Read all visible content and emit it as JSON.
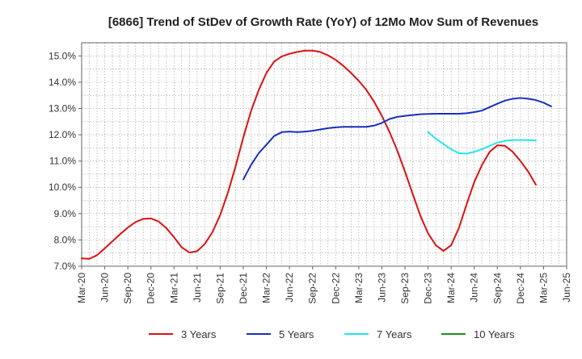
{
  "chart_data": {
    "type": "line",
    "title": "[6866]  Trend of StDev of Growth Rate (YoY) of 12Mo Mov Sum of Revenues",
    "xlabel": "",
    "ylabel": "",
    "ylim": [
      7.0,
      15.5
    ],
    "y_ticks": [
      "7.0%",
      "8.0%",
      "9.0%",
      "10.0%",
      "11.0%",
      "12.0%",
      "13.0%",
      "14.0%",
      "15.0%"
    ],
    "y_tick_values": [
      7,
      8,
      9,
      10,
      11,
      12,
      13,
      14,
      15
    ],
    "x_ticks": [
      "Mar-20",
      "Jun-20",
      "Sep-20",
      "Dec-20",
      "Mar-21",
      "Jun-21",
      "Sep-21",
      "Dec-21",
      "Mar-22",
      "Jun-22",
      "Sep-22",
      "Dec-22",
      "Mar-23",
      "Jun-23",
      "Sep-23",
      "Dec-23",
      "Mar-24",
      "Jun-24",
      "Sep-24",
      "Dec-24",
      "Mar-25",
      "Jun-25"
    ],
    "grid": true,
    "legend_position": "bottom",
    "series": [
      {
        "name": "3 Years",
        "color": "#dd1111",
        "start_index": 0,
        "values": [
          7.3,
          7.28,
          7.42,
          7.68,
          7.95,
          8.22,
          8.47,
          8.68,
          8.8,
          8.82,
          8.7,
          8.45,
          8.1,
          7.72,
          7.52,
          7.57,
          7.85,
          8.3,
          8.95,
          9.8,
          10.8,
          11.9,
          12.9,
          13.7,
          14.35,
          14.78,
          14.98,
          15.08,
          15.15,
          15.2,
          15.2,
          15.15,
          15.02,
          14.85,
          14.62,
          14.35,
          14.05,
          13.7,
          13.25,
          12.72,
          12.1,
          11.4,
          10.6,
          9.75,
          8.92,
          8.25,
          7.8,
          7.58,
          7.8,
          8.45,
          9.35,
          10.2,
          10.85,
          11.35,
          11.6,
          11.58,
          11.35,
          11.0,
          10.6,
          10.1
        ]
      },
      {
        "name": "5 Years",
        "color": "#1a2ebb",
        "start_index": 21,
        "values": [
          10.3,
          10.85,
          11.3,
          11.62,
          11.95,
          12.1,
          12.12,
          12.1,
          12.12,
          12.15,
          12.2,
          12.25,
          12.28,
          12.3,
          12.3,
          12.3,
          12.3,
          12.35,
          12.45,
          12.6,
          12.68,
          12.72,
          12.75,
          12.78,
          12.79,
          12.8,
          12.8,
          12.8,
          12.8,
          12.82,
          12.86,
          12.92,
          13.05,
          13.18,
          13.3,
          13.37,
          13.4,
          13.37,
          13.32,
          13.22,
          13.08
        ]
      },
      {
        "name": "7 Years",
        "color": "#22e5ee",
        "start_index": 45,
        "values": [
          12.1,
          11.85,
          11.65,
          11.45,
          11.3,
          11.28,
          11.35,
          11.45,
          11.58,
          11.7,
          11.77,
          11.8,
          11.8,
          11.8,
          11.78
        ]
      },
      {
        "name": "10 Years",
        "color": "#1e8c1e",
        "start_index": 0,
        "values": []
      }
    ]
  }
}
